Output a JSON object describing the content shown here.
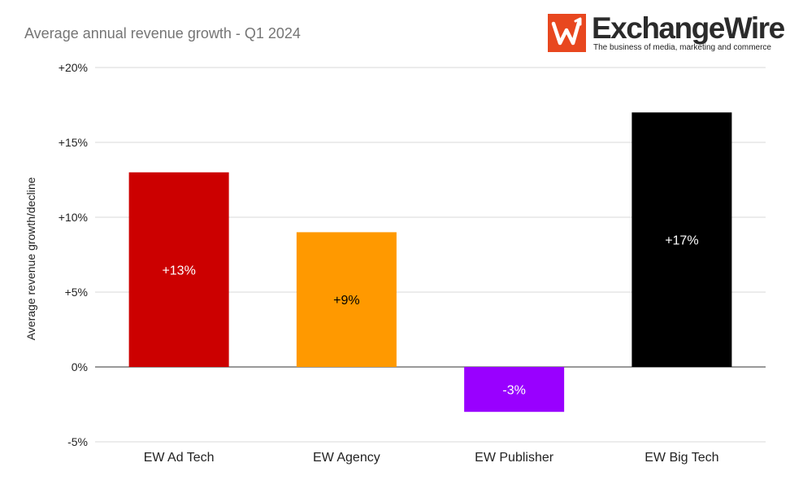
{
  "chart_data": {
    "type": "bar",
    "title": "Average annual revenue growth - Q1 2024",
    "ylabel": "Average revenue growth/decline",
    "xlabel": "",
    "categories": [
      "EW Ad Tech",
      "EW Agency",
      "EW Publisher",
      "EW Big Tech"
    ],
    "values": [
      13,
      9,
      -3,
      17
    ],
    "data_labels": [
      "+13%",
      "+9%",
      "-3%",
      "+17%"
    ],
    "bar_colors": [
      "#cc0000",
      "#ff9900",
      "#9900ff",
      "#000000"
    ],
    "label_colors": [
      "#ffffff",
      "#000000",
      "#ffffff",
      "#ffffff"
    ],
    "ylim": [
      -5,
      20
    ],
    "yticks": [
      20,
      15,
      10,
      5,
      0,
      -5
    ],
    "ytick_labels": [
      "+20%",
      "+15%",
      "+10%",
      "+5%",
      "0%",
      "-5%"
    ],
    "grid": true,
    "legend": "none"
  },
  "logo": {
    "name": "ExchangeWire",
    "tagline": "The business of media, marketing and commerce",
    "color": "#e8471f",
    "icon": "exchangewire-w-icon"
  }
}
